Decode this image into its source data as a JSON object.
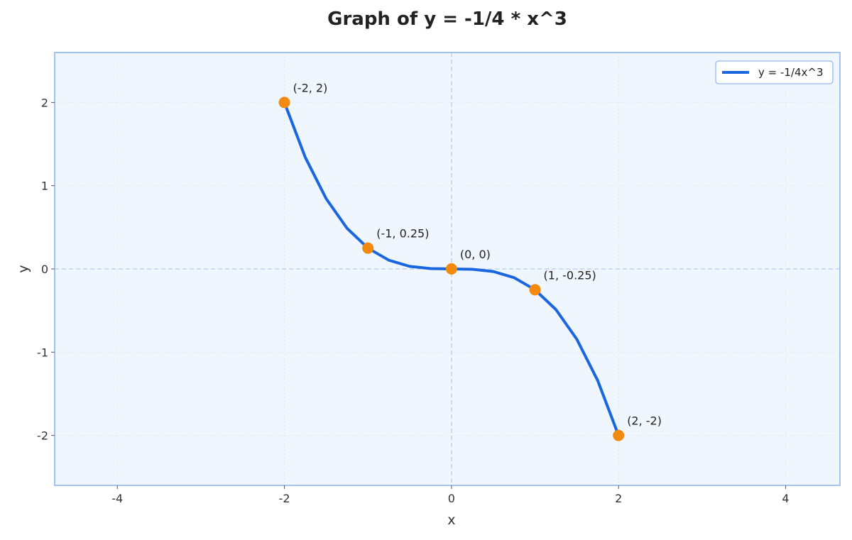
{
  "chart_data": {
    "type": "line",
    "title": "Graph of y = -1/4 * x^3",
    "xlabel": "x",
    "ylabel": "y",
    "xlim": [
      -4.75,
      4.65
    ],
    "ylim": [
      -2.6,
      2.6
    ],
    "x_ticks": [
      -4,
      -2,
      0,
      2,
      4
    ],
    "y_ticks": [
      -2,
      -1,
      0,
      1,
      2
    ],
    "grid": true,
    "legend_position": "top-right",
    "series": [
      {
        "name": "y = -1/4x^3",
        "color": "#1a66e0",
        "x": [
          -2,
          -1.75,
          -1.5,
          -1.25,
          -1,
          -0.75,
          -0.5,
          -0.25,
          0,
          0.25,
          0.5,
          0.75,
          1,
          1.25,
          1.5,
          1.75,
          2
        ],
        "y": [
          2,
          1.34,
          0.844,
          0.488,
          0.25,
          0.105,
          0.031,
          0.004,
          0,
          -0.004,
          -0.031,
          -0.105,
          -0.25,
          -0.488,
          -0.844,
          -1.34,
          -2
        ]
      }
    ],
    "points": [
      {
        "x": -2,
        "y": 2,
        "label": "(-2, 2)"
      },
      {
        "x": -1,
        "y": 0.25,
        "label": "(-1, 0.25)"
      },
      {
        "x": 0,
        "y": 0,
        "label": "(0, 0)"
      },
      {
        "x": 1,
        "y": -0.25,
        "label": "(1, -0.25)"
      },
      {
        "x": 2,
        "y": -2,
        "label": "(2, -2)"
      }
    ],
    "colors": {
      "plot_background": "#f0f6fd",
      "plot_border": "#a3c2f0",
      "curve": "#1a66e0",
      "points": "#f28a0f",
      "axis_lines": "#bcd4f2",
      "grid": "#dde6f0"
    }
  }
}
